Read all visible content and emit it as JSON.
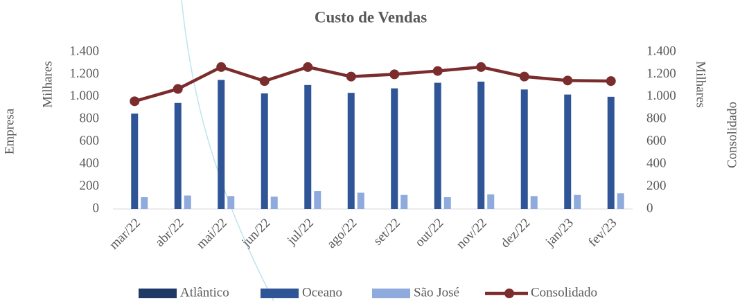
{
  "chart_data": {
    "type": "bar_line",
    "title": "Custo de Vendas",
    "y_axis_label": "Empresa",
    "y_display_unit": "Milhares",
    "y2_axis_label": "Consolidado",
    "y2_display_unit": "Milhares",
    "categories": [
      "mar/22",
      "abr/22",
      "mai/22",
      "jun/22",
      "jul/22",
      "ago/22",
      "set/22",
      "out/22",
      "nov/22",
      "dez/22",
      "jan/23",
      "fev/23"
    ],
    "series": [
      {
        "name": "Atlântico",
        "color": "#1f3864",
        "type": "bar",
        "values": [
          0,
          0,
          0,
          0,
          0,
          0,
          0,
          0,
          0,
          0,
          0,
          0
        ]
      },
      {
        "name": "Oceano",
        "color": "#2f5597",
        "type": "bar",
        "values": [
          850,
          945,
          1150,
          1030,
          1105,
          1035,
          1075,
          1125,
          1135,
          1065,
          1020,
          1000
        ]
      },
      {
        "name": "São  José",
        "color": "#8faadc",
        "type": "bar",
        "values": [
          105,
          120,
          115,
          110,
          160,
          145,
          125,
          105,
          130,
          115,
          125,
          140
        ]
      },
      {
        "name": "Consolidado",
        "color": "#7b2c2c",
        "type": "line",
        "axis": "y2",
        "values": [
          960,
          1070,
          1265,
          1140,
          1265,
          1180,
          1200,
          1230,
          1265,
          1180,
          1145,
          1140
        ]
      }
    ],
    "ylim": [
      0,
      1400
    ],
    "yticks": [
      0,
      200,
      400,
      600,
      800,
      {
        "value": 1000,
        "label": "1.000"
      },
      {
        "value": 1200,
        "label": "1.200"
      },
      {
        "value": 1400,
        "label": "1.400"
      }
    ],
    "y2lim": [
      0,
      1400
    ],
    "y2ticks": [
      0,
      200,
      400,
      600,
      800,
      {
        "value": 1000,
        "label": "1.000"
      },
      {
        "value": 1200,
        "label": "1.200"
      },
      {
        "value": 1400,
        "label": "1.400"
      }
    ],
    "legend": "bottom"
  }
}
